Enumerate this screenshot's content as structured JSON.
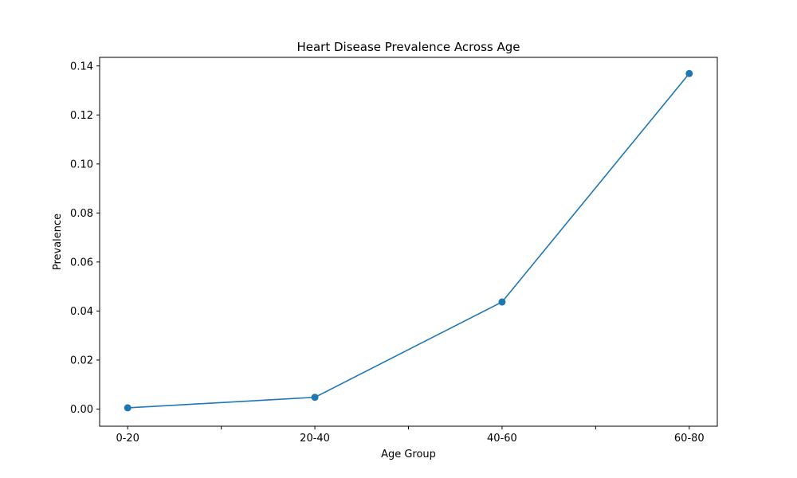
{
  "chart_data": {
    "type": "line",
    "title": "Heart Disease Prevalence Across Age",
    "xlabel": "Age Group",
    "ylabel": "Prevalence",
    "categories": [
      "0-20",
      "20-40",
      "40-60",
      "60-80"
    ],
    "minor_x_ticks": true,
    "series": [
      {
        "values": [
          0.0005,
          0.0048,
          0.0437,
          0.1369
        ],
        "color": "#1f77b4",
        "marker": "circle"
      }
    ],
    "ylim": [
      -0.007,
      0.1435
    ],
    "yticks": [
      0.0,
      0.02,
      0.04,
      0.06,
      0.08,
      0.1,
      0.12,
      0.14
    ],
    "ytick_labels": [
      "0.00",
      "0.02",
      "0.04",
      "0.06",
      "0.08",
      "0.10",
      "0.12",
      "0.14"
    ],
    "grid": false,
    "legend": "none"
  }
}
